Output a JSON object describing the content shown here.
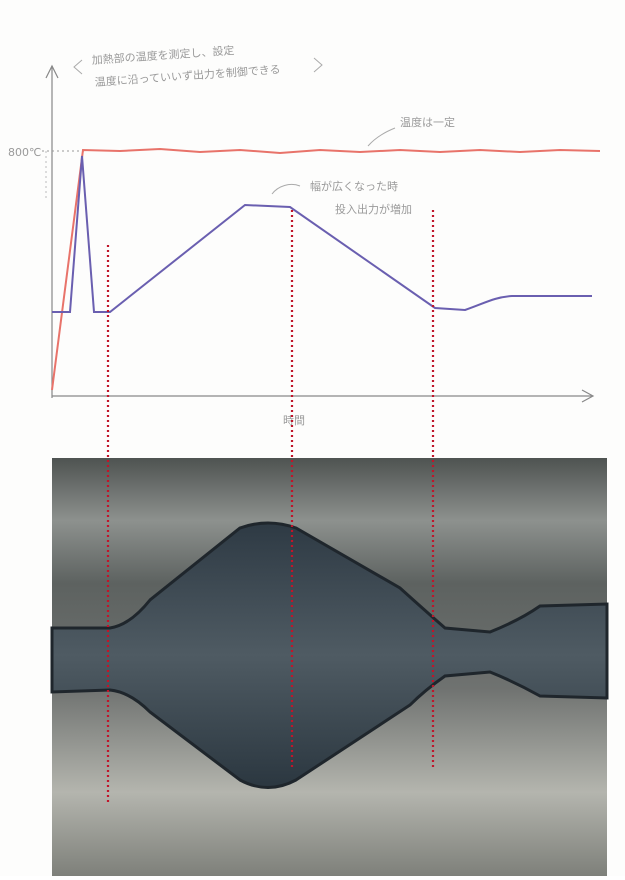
{
  "annotations": {
    "note_line1": "加熱部の温度を測定し、設定",
    "note_line2": "温度に沿っていいず出力を制御できる",
    "temperature_mark": "800℃",
    "temperature_note": "温度は一定",
    "width_note_line1": "幅が広くなった時",
    "width_note_line2": "投入出力が増加"
  },
  "axis": {
    "x_label": "時間"
  }
}
